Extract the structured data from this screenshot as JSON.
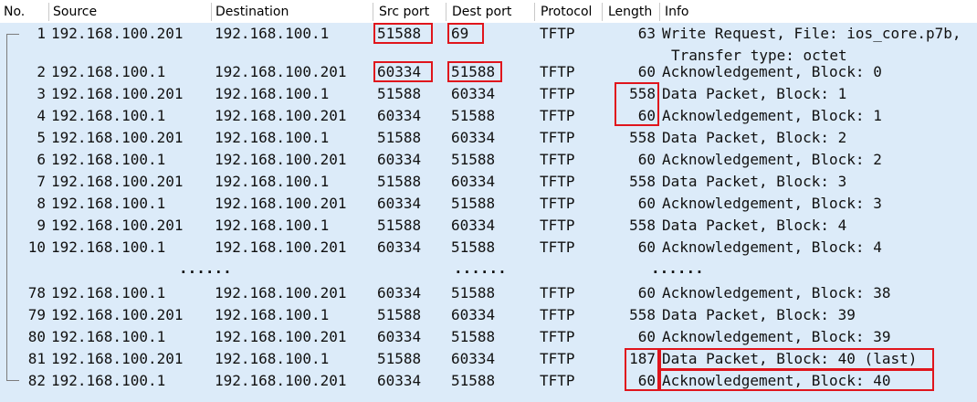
{
  "columns": [
    "No.",
    "Source",
    "Destination",
    "Src port",
    "Dest port",
    "Protocol",
    "Length",
    "Info"
  ],
  "packets_top": [
    {
      "no": "1",
      "src": "192.168.100.201",
      "dst": "192.168.100.1",
      "sport": "51588",
      "dport": "69",
      "proto": "TFTP",
      "len": "63",
      "info": "Write Request, File: ios_core.p7b,",
      "info2": "Transfer type: octet"
    },
    {
      "no": "2",
      "src": "192.168.100.1",
      "dst": "192.168.100.201",
      "sport": "60334",
      "dport": "51588",
      "proto": "TFTP",
      "len": "60",
      "info": "Acknowledgement, Block: 0"
    },
    {
      "no": "3",
      "src": "192.168.100.201",
      "dst": "192.168.100.1",
      "sport": "51588",
      "dport": "60334",
      "proto": "TFTP",
      "len": "558",
      "info": "Data Packet, Block: 1"
    },
    {
      "no": "4",
      "src": "192.168.100.1",
      "dst": "192.168.100.201",
      "sport": "60334",
      "dport": "51588",
      "proto": "TFTP",
      "len": "60",
      "info": "Acknowledgement, Block: 1"
    },
    {
      "no": "5",
      "src": "192.168.100.201",
      "dst": "192.168.100.1",
      "sport": "51588",
      "dport": "60334",
      "proto": "TFTP",
      "len": "558",
      "info": "Data Packet, Block: 2"
    },
    {
      "no": "6",
      "src": "192.168.100.1",
      "dst": "192.168.100.201",
      "sport": "60334",
      "dport": "51588",
      "proto": "TFTP",
      "len": "60",
      "info": "Acknowledgement, Block: 2"
    },
    {
      "no": "7",
      "src": "192.168.100.201",
      "dst": "192.168.100.1",
      "sport": "51588",
      "dport": "60334",
      "proto": "TFTP",
      "len": "558",
      "info": "Data Packet, Block: 3"
    },
    {
      "no": "8",
      "src": "192.168.100.1",
      "dst": "192.168.100.201",
      "sport": "60334",
      "dport": "51588",
      "proto": "TFTP",
      "len": "60",
      "info": "Acknowledgement, Block: 3"
    },
    {
      "no": "9",
      "src": "192.168.100.201",
      "dst": "192.168.100.1",
      "sport": "51588",
      "dport": "60334",
      "proto": "TFTP",
      "len": "558",
      "info": "Data Packet, Block: 4"
    },
    {
      "no": "10",
      "src": "192.168.100.1",
      "dst": "192.168.100.201",
      "sport": "60334",
      "dport": "51588",
      "proto": "TFTP",
      "len": "60",
      "info": "Acknowledgement, Block: 4"
    }
  ],
  "ellipsis": "......",
  "packets_bottom": [
    {
      "no": "78",
      "src": "192.168.100.1",
      "dst": "192.168.100.201",
      "sport": "60334",
      "dport": "51588",
      "proto": "TFTP",
      "len": "60",
      "info": "Acknowledgement, Block: 38"
    },
    {
      "no": "79",
      "src": "192.168.100.201",
      "dst": "192.168.100.1",
      "sport": "51588",
      "dport": "60334",
      "proto": "TFTP",
      "len": "558",
      "info": "Data Packet, Block: 39"
    },
    {
      "no": "80",
      "src": "192.168.100.1",
      "dst": "192.168.100.201",
      "sport": "60334",
      "dport": "51588",
      "proto": "TFTP",
      "len": "60",
      "info": "Acknowledgement, Block: 39"
    },
    {
      "no": "81",
      "src": "192.168.100.201",
      "dst": "192.168.100.1",
      "sport": "51588",
      "dport": "60334",
      "proto": "TFTP",
      "len": "187",
      "info": "Data Packet, Block: 40 (last)"
    },
    {
      "no": "82",
      "src": "192.168.100.1",
      "dst": "192.168.100.201",
      "sport": "60334",
      "dport": "51588",
      "proto": "TFTP",
      "len": "60",
      "info": "Acknowledgement, Block: 40"
    }
  ],
  "colors": {
    "row_background": "#dcebf9",
    "highlight_box": "#e0151c",
    "conversation_line": "#7c7c7c"
  }
}
